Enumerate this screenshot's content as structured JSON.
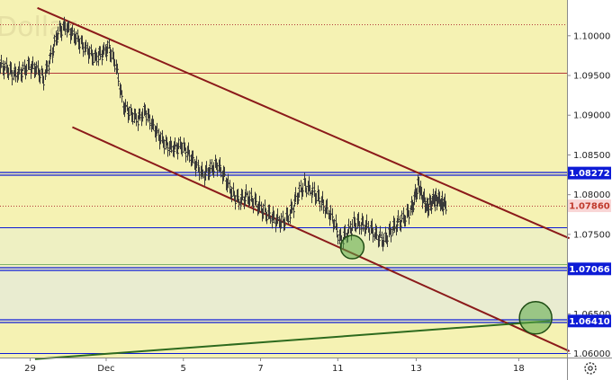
{
  "chart_data": {
    "type": "candlestick",
    "watermark": "Dollar",
    "colors": {
      "plot_background": "#f5f2b3",
      "panel_background": "#ffffff",
      "candle": "#3a3a3a",
      "channel": "#8b1a1a",
      "support_line": "#2d6a1e",
      "blue_level": "#0d1bd6",
      "red_level": "#b33a3a",
      "current_price_bg": "#f9d6d6",
      "current_price_text": "#c0392b",
      "highlight_circle": "#5aa847"
    },
    "y_axis": {
      "min": 1.0595,
      "max": 1.1045,
      "ticks": [
        {
          "value": 1.1,
          "label": "1.10000"
        },
        {
          "value": 1.095,
          "label": "1.09500"
        },
        {
          "value": 1.09,
          "label": "1.09000"
        },
        {
          "value": 1.085,
          "label": "1.08500"
        },
        {
          "value": 1.08,
          "label": "1.08000"
        },
        {
          "value": 1.075,
          "label": "1.07500"
        },
        {
          "value": 1.065,
          "label": "1.06500"
        },
        {
          "value": 1.06,
          "label": "1.06000"
        }
      ]
    },
    "x_axis": {
      "min": 0,
      "max": 23.5,
      "ticks": [
        {
          "value": 1.25,
          "label": "29"
        },
        {
          "value": 4.4,
          "label": "Dec"
        },
        {
          "value": 7.6,
          "label": "5"
        },
        {
          "value": 10.8,
          "label": "7"
        },
        {
          "value": 14.0,
          "label": "11"
        },
        {
          "value": 17.25,
          "label": "13"
        },
        {
          "value": 21.5,
          "label": "18"
        }
      ]
    },
    "level_badges": [
      {
        "value": 1.08272,
        "label": "1.08272",
        "style": "blue"
      },
      {
        "value": 1.0786,
        "label": "1.07860",
        "style": "current"
      },
      {
        "value": 1.07066,
        "label": "1.07066",
        "style": "blue"
      },
      {
        "value": 1.0641,
        "label": "1.06410",
        "style": "blue"
      }
    ],
    "horizontal_levels": [
      {
        "value": 1.1015,
        "style": "dotted-red"
      },
      {
        "value": 1.0953,
        "style": "red"
      },
      {
        "value": 1.08272,
        "style": "double-blue"
      },
      {
        "value": 1.0786,
        "style": "dotted-red"
      },
      {
        "value": 1.0759,
        "style": "blue"
      },
      {
        "value": 1.0713,
        "style": "green"
      },
      {
        "value": 1.07066,
        "style": "double-blue"
      },
      {
        "value": 1.0641,
        "style": "double-blue"
      },
      {
        "value": 1.0601,
        "style": "blue"
      }
    ],
    "price_series": [
      {
        "x": 0.0,
        "y": 1.0962
      },
      {
        "x": 0.3,
        "y": 1.0958
      },
      {
        "x": 0.6,
        "y": 1.0951
      },
      {
        "x": 0.9,
        "y": 1.0955
      },
      {
        "x": 1.2,
        "y": 1.0962
      },
      {
        "x": 1.5,
        "y": 1.0958
      },
      {
        "x": 1.8,
        "y": 1.0946
      },
      {
        "x": 2.1,
        "y": 1.0975
      },
      {
        "x": 2.4,
        "y": 1.1005
      },
      {
        "x": 2.7,
        "y": 1.1012
      },
      {
        "x": 3.0,
        "y": 1.1002
      },
      {
        "x": 3.3,
        "y": 1.0992
      },
      {
        "x": 3.6,
        "y": 1.0982
      },
      {
        "x": 3.9,
        "y": 1.0972
      },
      {
        "x": 4.2,
        "y": 1.0978
      },
      {
        "x": 4.5,
        "y": 1.0985
      },
      {
        "x": 4.8,
        "y": 1.0962
      },
      {
        "x": 5.1,
        "y": 1.0912
      },
      {
        "x": 5.4,
        "y": 1.0902
      },
      {
        "x": 5.7,
        "y": 1.0895
      },
      {
        "x": 6.0,
        "y": 1.0905
      },
      {
        "x": 6.3,
        "y": 1.0888
      },
      {
        "x": 6.6,
        "y": 1.0872
      },
      {
        "x": 6.9,
        "y": 1.0862
      },
      {
        "x": 7.2,
        "y": 1.0858
      },
      {
        "x": 7.5,
        "y": 1.0862
      },
      {
        "x": 7.8,
        "y": 1.0852
      },
      {
        "x": 8.1,
        "y": 1.0838
      },
      {
        "x": 8.4,
        "y": 1.0825
      },
      {
        "x": 8.7,
        "y": 1.0832
      },
      {
        "x": 9.0,
        "y": 1.0838
      },
      {
        "x": 9.3,
        "y": 1.0822
      },
      {
        "x": 9.6,
        "y": 1.0802
      },
      {
        "x": 9.9,
        "y": 1.0792
      },
      {
        "x": 10.2,
        "y": 1.0798
      },
      {
        "x": 10.5,
        "y": 1.0792
      },
      {
        "x": 10.8,
        "y": 1.0782
      },
      {
        "x": 11.1,
        "y": 1.0775
      },
      {
        "x": 11.4,
        "y": 1.0768
      },
      {
        "x": 11.7,
        "y": 1.0765
      },
      {
        "x": 12.0,
        "y": 1.0775
      },
      {
        "x": 12.3,
        "y": 1.0798
      },
      {
        "x": 12.6,
        "y": 1.0812
      },
      {
        "x": 12.9,
        "y": 1.0805
      },
      {
        "x": 13.2,
        "y": 1.0795
      },
      {
        "x": 13.5,
        "y": 1.0782
      },
      {
        "x": 13.8,
        "y": 1.0768
      },
      {
        "x": 14.1,
        "y": 1.0742
      },
      {
        "x": 14.4,
        "y": 1.0752
      },
      {
        "x": 14.7,
        "y": 1.0765
      },
      {
        "x": 15.0,
        "y": 1.0762
      },
      {
        "x": 15.3,
        "y": 1.0758
      },
      {
        "x": 15.6,
        "y": 1.0748
      },
      {
        "x": 15.9,
        "y": 1.0742
      },
      {
        "x": 16.2,
        "y": 1.0755
      },
      {
        "x": 16.5,
        "y": 1.0765
      },
      {
        "x": 16.8,
        "y": 1.0772
      },
      {
        "x": 17.1,
        "y": 1.0785
      },
      {
        "x": 17.3,
        "y": 1.0812
      },
      {
        "x": 17.5,
        "y": 1.0798
      },
      {
        "x": 17.7,
        "y": 1.0782
      },
      {
        "x": 17.9,
        "y": 1.0792
      },
      {
        "x": 18.1,
        "y": 1.0795
      },
      {
        "x": 18.3,
        "y": 1.079
      },
      {
        "x": 18.5,
        "y": 1.0786
      }
    ],
    "trend_lines": [
      {
        "name": "channel-upper",
        "style": "channel",
        "x1": 1.55,
        "y1": 1.1035,
        "x2": 23.6,
        "y2": 1.0745
      },
      {
        "name": "channel-lower",
        "style": "channel",
        "x1": 3.0,
        "y1": 1.0885,
        "x2": 23.6,
        "y2": 1.0603
      },
      {
        "name": "support-rising",
        "style": "support",
        "x1": 1.45,
        "y1": 1.0593,
        "x2": 22.8,
        "y2": 1.0641
      }
    ],
    "highlight_circles": [
      {
        "x": 14.6,
        "y": 1.0734,
        "r_small": true
      },
      {
        "x": 22.2,
        "y": 1.0645,
        "r_small": false
      }
    ],
    "settings_icon": "gear-icon"
  }
}
